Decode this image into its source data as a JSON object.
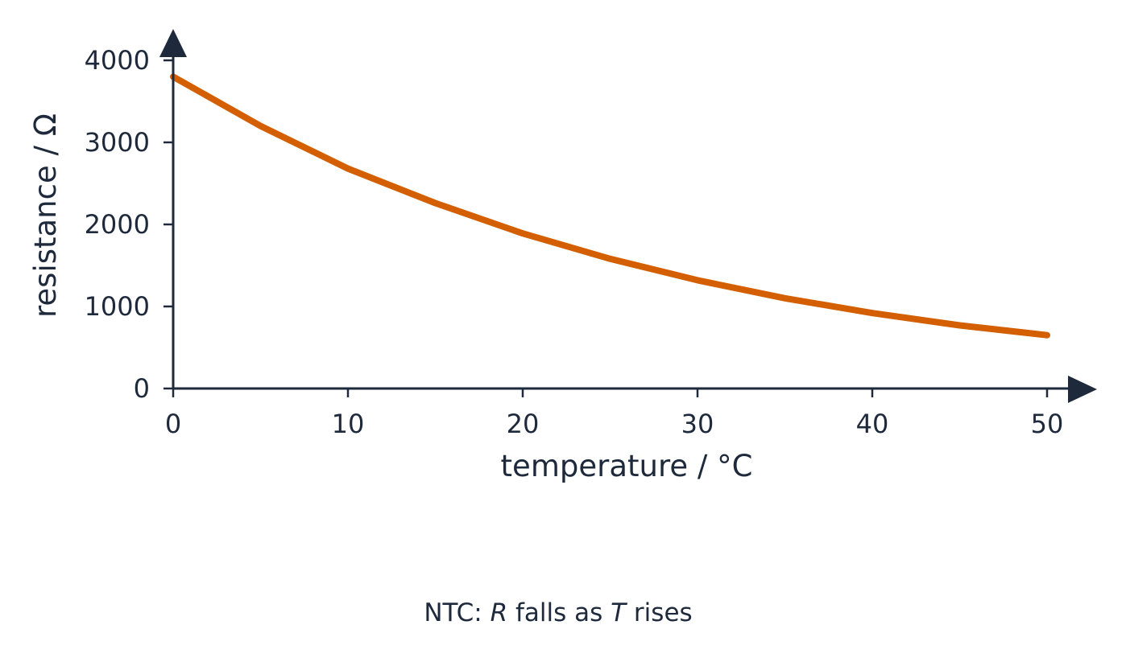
{
  "chart_data": {
    "type": "line",
    "title": "",
    "xlabel": "temperature / °C",
    "ylabel": "resistance / Ω",
    "xlim": [
      0,
      50
    ],
    "ylim": [
      0,
      4000
    ],
    "x_ticks": [
      0,
      10,
      20,
      30,
      40,
      50
    ],
    "y_ticks": [
      0,
      1000,
      2000,
      3000,
      4000
    ],
    "grid": false,
    "legend": "none",
    "series": [
      {
        "color": "#d35f00",
        "x": [
          0,
          5,
          10,
          15,
          20,
          25,
          30,
          35,
          40,
          45,
          50
        ],
        "y": [
          3800,
          3200,
          2680,
          2260,
          1890,
          1580,
          1320,
          1100,
          920,
          770,
          650
        ]
      }
    ],
    "axis_color": "#1e293b"
  },
  "caption": {
    "prefix": "NTC: ",
    "var_r": "R",
    "middle": " falls as ",
    "var_t": "T",
    "suffix": " rises"
  }
}
